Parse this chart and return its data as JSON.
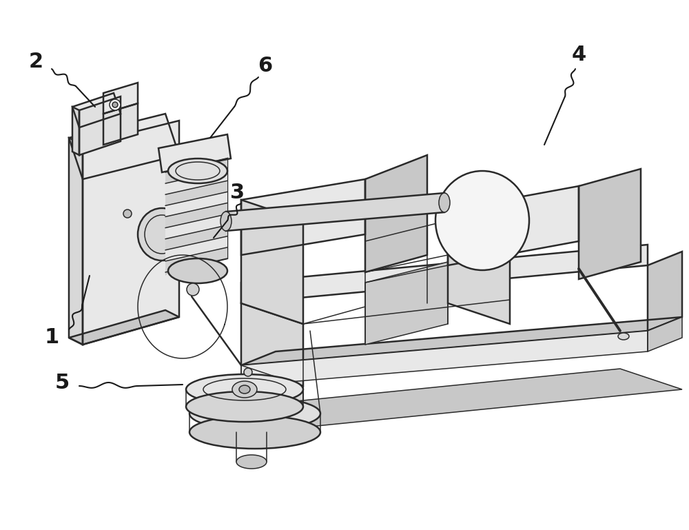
{
  "bg_color": "#ffffff",
  "line_color": "#2a2a2a",
  "label_color": "#1a1a1a",
  "fig_width": 10.0,
  "fig_height": 7.69,
  "dpi": 100,
  "font_size": 22,
  "lw_main": 1.8,
  "lw_thin": 1.1,
  "lw_thick": 2.2
}
